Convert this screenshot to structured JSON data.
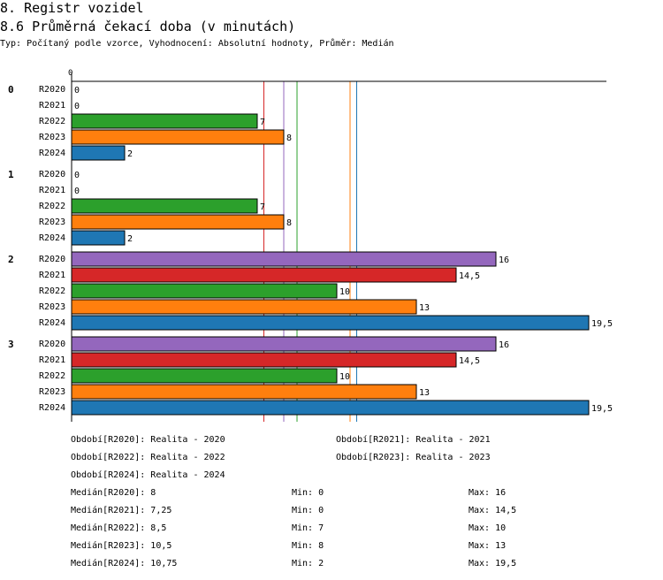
{
  "header": {
    "section": "8. Registr vozidel",
    "title": "8.6 Průměrná čekací doba (v minutách)",
    "subtitle": "Typ: Počítaný podle vzorce, Vyhodnocení: Absolutní hodnoty, Průměr: Medián"
  },
  "chart_data": {
    "type": "bar",
    "orientation": "horizontal",
    "xlim": [
      0,
      20
    ],
    "axis_tick_label": "0",
    "groups": [
      "0",
      "1",
      "2",
      "3"
    ],
    "series": [
      {
        "name": "R2020",
        "color": "#9467bd",
        "values": [
          0,
          0,
          16,
          16
        ],
        "labels": [
          "0",
          "0",
          "16",
          "16"
        ]
      },
      {
        "name": "R2021",
        "color": "#d62728",
        "values": [
          0,
          0,
          14.5,
          14.5
        ],
        "labels": [
          "0",
          "0",
          "14,5",
          "14,5"
        ]
      },
      {
        "name": "R2022",
        "color": "#2ca02c",
        "values": [
          7,
          7,
          10,
          10
        ],
        "labels": [
          "7",
          "7",
          "10",
          "10"
        ]
      },
      {
        "name": "R2023",
        "color": "#ff7f0e",
        "values": [
          8,
          8,
          13,
          13
        ],
        "labels": [
          "8",
          "8",
          "13",
          "13"
        ]
      },
      {
        "name": "R2024",
        "color": "#1f77b4",
        "values": [
          2,
          2,
          19.5,
          19.5
        ],
        "labels": [
          "2",
          "2",
          "19,5",
          "19,5"
        ]
      }
    ],
    "medians": [
      {
        "series": "R2020",
        "value": 8
      },
      {
        "series": "R2021",
        "value": 7.25
      },
      {
        "series": "R2022",
        "value": 8.5
      },
      {
        "series": "R2023",
        "value": 10.5
      },
      {
        "series": "R2024",
        "value": 10.75
      }
    ]
  },
  "legend": {
    "periods": [
      "Období[R2020]: Realita - 2020",
      "Období[R2021]: Realita - 2021",
      "Období[R2022]: Realita - 2022",
      "Období[R2023]: Realita - 2023",
      "Období[R2024]: Realita - 2024"
    ],
    "stats": [
      {
        "median": "Medián[R2020]: 8",
        "min": "Min: 0",
        "max": "Max: 16"
      },
      {
        "median": "Medián[R2021]: 7,25",
        "min": "Min: 0",
        "max": "Max: 14,5"
      },
      {
        "median": "Medián[R2022]: 8,5",
        "min": "Min: 7",
        "max": "Max: 10"
      },
      {
        "median": "Medián[R2023]: 10,5",
        "min": "Min: 8",
        "max": "Max: 13"
      },
      {
        "median": "Medián[R2024]: 10,75",
        "min": "Min: 2",
        "max": "Max: 19,5"
      }
    ]
  }
}
